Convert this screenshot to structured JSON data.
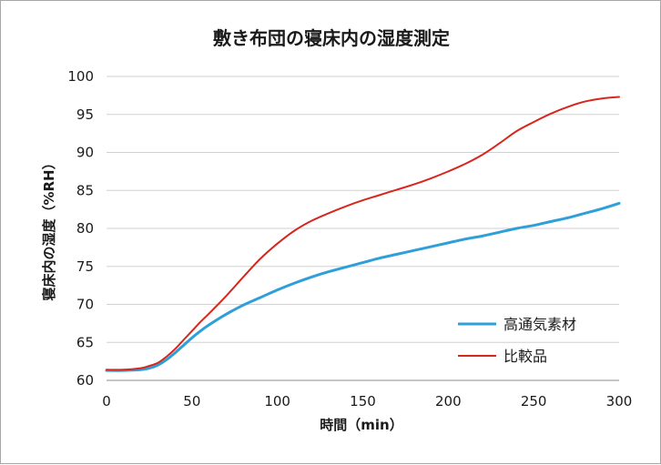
{
  "chart_data": {
    "type": "line",
    "title": "敷き布団の寝床内の湿度測定",
    "xlabel": "時間（min）",
    "ylabel": "寝床内の湿度（%RH）",
    "xlim": [
      0,
      300
    ],
    "ylim": [
      60,
      100
    ],
    "xticks": [
      0,
      50,
      100,
      150,
      200,
      250,
      300
    ],
    "yticks": [
      60,
      65,
      70,
      75,
      80,
      85,
      90,
      95,
      100
    ],
    "grid": true,
    "legend_position": "bottom-right",
    "series": [
      {
        "name": "高通気素材",
        "color": "#2e9fd8",
        "x": [
          0,
          10,
          20,
          25,
          30,
          35,
          40,
          45,
          50,
          55,
          60,
          70,
          80,
          90,
          100,
          110,
          120,
          130,
          140,
          150,
          160,
          170,
          180,
          190,
          200,
          210,
          220,
          230,
          240,
          250,
          260,
          270,
          280,
          290,
          300
        ],
        "y": [
          61.3,
          61.3,
          61.4,
          61.6,
          62.0,
          62.7,
          63.6,
          64.6,
          65.6,
          66.5,
          67.3,
          68.7,
          69.9,
          70.9,
          71.9,
          72.8,
          73.6,
          74.3,
          74.9,
          75.5,
          76.1,
          76.6,
          77.1,
          77.6,
          78.1,
          78.6,
          79.0,
          79.5,
          80.0,
          80.4,
          80.9,
          81.4,
          82.0,
          82.6,
          83.3
        ]
      },
      {
        "name": "比較品",
        "color": "#d7261e",
        "x": [
          0,
          10,
          20,
          25,
          30,
          35,
          40,
          45,
          50,
          55,
          60,
          70,
          80,
          90,
          100,
          110,
          120,
          130,
          140,
          150,
          160,
          170,
          180,
          190,
          200,
          210,
          220,
          230,
          240,
          250,
          260,
          270,
          280,
          290,
          300
        ],
        "y": [
          61.4,
          61.4,
          61.6,
          61.9,
          62.3,
          63.1,
          64.1,
          65.3,
          66.5,
          67.7,
          68.8,
          71.1,
          73.6,
          76.0,
          78.0,
          79.7,
          81.0,
          82.0,
          82.9,
          83.7,
          84.4,
          85.1,
          85.8,
          86.6,
          87.5,
          88.5,
          89.7,
          91.2,
          92.8,
          94.0,
          95.1,
          96.0,
          96.7,
          97.1,
          97.3
        ]
      }
    ]
  }
}
